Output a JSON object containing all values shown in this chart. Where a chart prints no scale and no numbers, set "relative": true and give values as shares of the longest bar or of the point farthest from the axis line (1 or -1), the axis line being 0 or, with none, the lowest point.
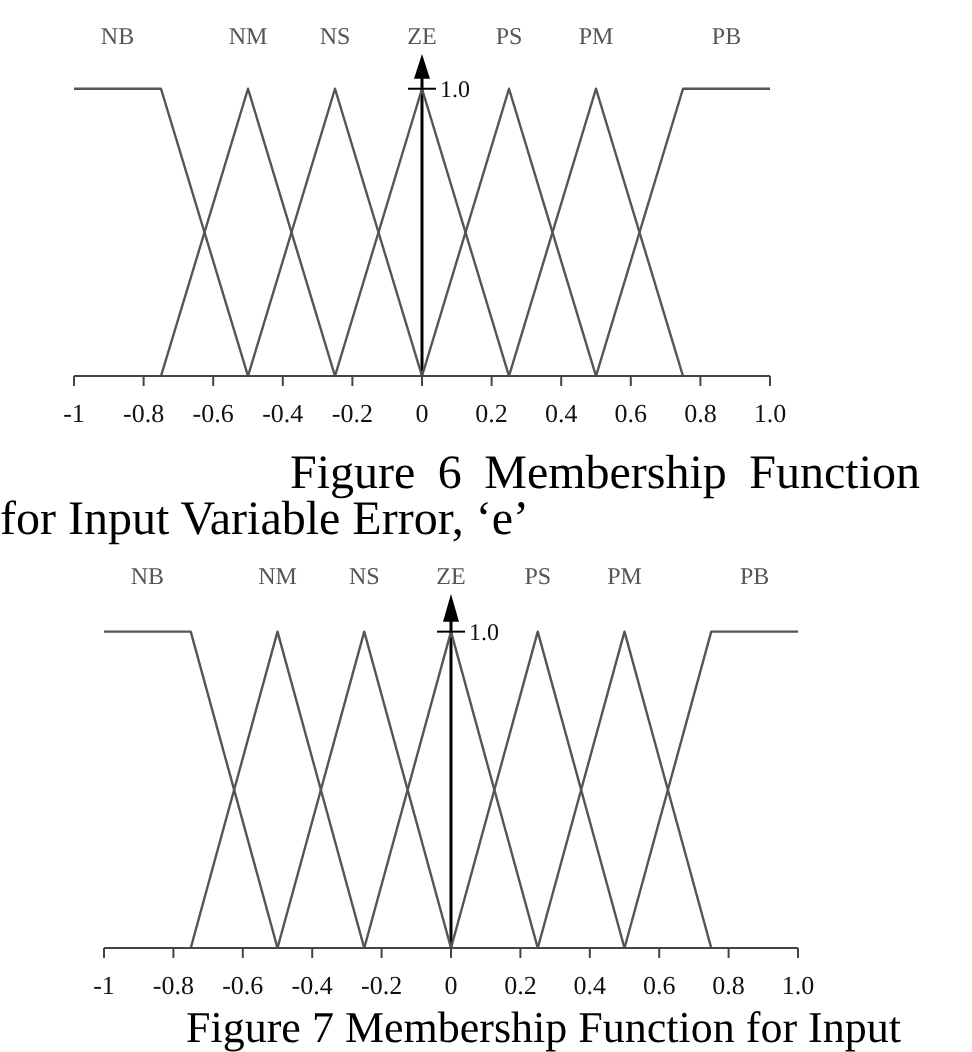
{
  "chart_data": [
    {
      "type": "line",
      "relative": true,
      "xlim": [
        -1,
        1
      ],
      "xticks": [
        -1,
        -0.8,
        -0.6,
        -0.4,
        -0.2,
        0,
        0.2,
        0.4,
        0.6,
        0.8,
        {
          "value": 1,
          "label": "1.0"
        }
      ],
      "tick_labels": "x",
      "series": [
        {
          "name": "NB",
          "color": "#555555",
          "x": [
            -1,
            -0.75,
            -0.5
          ],
          "values": [
            1,
            1,
            0
          ]
        },
        {
          "name": "NM",
          "color": "#555555",
          "x": [
            -0.75,
            -0.5,
            -0.25
          ],
          "values": [
            0,
            1,
            0
          ]
        },
        {
          "name": "NS",
          "color": "#555555",
          "x": [
            -0.5,
            -0.25,
            0
          ],
          "values": [
            0,
            1,
            0
          ]
        },
        {
          "name": "ZE",
          "color": "#555555",
          "x": [
            -0.25,
            0,
            0.25
          ],
          "values": [
            0,
            1,
            0
          ]
        },
        {
          "name": "PS",
          "color": "#555555",
          "x": [
            0,
            0.25,
            0.5
          ],
          "values": [
            0,
            1,
            0
          ]
        },
        {
          "name": "PM",
          "color": "#555555",
          "x": [
            0.25,
            0.5,
            0.75
          ],
          "values": [
            0,
            1,
            0
          ]
        },
        {
          "name": "PB",
          "color": "#555555",
          "x": [
            0.5,
            0.75,
            1
          ],
          "values": [
            0,
            1,
            1
          ]
        }
      ],
      "ref_lines": [
        {
          "axis": "x",
          "value": 0,
          "color": "#000000"
        }
      ],
      "annotations": [
        {
          "text": "1.0",
          "x": 0,
          "y": 1
        },
        "Figure 6 Membership Function for Input Variable Error, ‘e’"
      ]
    },
    {
      "type": "line",
      "relative": true,
      "xlim": [
        -1,
        1
      ],
      "xticks": [
        -1,
        -0.8,
        -0.6,
        -0.4,
        -0.2,
        0,
        0.2,
        0.4,
        0.6,
        0.8,
        {
          "value": 1,
          "label": "1.0"
        }
      ],
      "tick_labels": "x",
      "series": [
        {
          "name": "NB",
          "color": "#555555",
          "x": [
            -1,
            -0.75,
            -0.5
          ],
          "values": [
            1,
            1,
            0
          ]
        },
        {
          "name": "NM",
          "color": "#555555",
          "x": [
            -0.75,
            -0.5,
            -0.25
          ],
          "values": [
            0,
            1,
            0
          ]
        },
        {
          "name": "NS",
          "color": "#555555",
          "x": [
            -0.5,
            -0.25,
            0
          ],
          "values": [
            0,
            1,
            0
          ]
        },
        {
          "name": "ZE",
          "color": "#555555",
          "x": [
            -0.25,
            0,
            0.25
          ],
          "values": [
            0,
            1,
            0
          ]
        },
        {
          "name": "PS",
          "color": "#555555",
          "x": [
            0,
            0.25,
            0.5
          ],
          "values": [
            0,
            1,
            0
          ]
        },
        {
          "name": "PM",
          "color": "#555555",
          "x": [
            0.25,
            0.5,
            0.75
          ],
          "values": [
            0,
            1,
            0
          ]
        },
        {
          "name": "PB",
          "color": "#555555",
          "x": [
            0.5,
            0.75,
            1
          ],
          "values": [
            0,
            1,
            1
          ]
        }
      ],
      "ref_lines": [
        {
          "axis": "x",
          "value": 0,
          "color": "#000000"
        }
      ],
      "annotations": [
        {
          "text": "1.0",
          "x": 0,
          "y": 1
        },
        "Figure 7 Membership Function for Input"
      ]
    }
  ]
}
